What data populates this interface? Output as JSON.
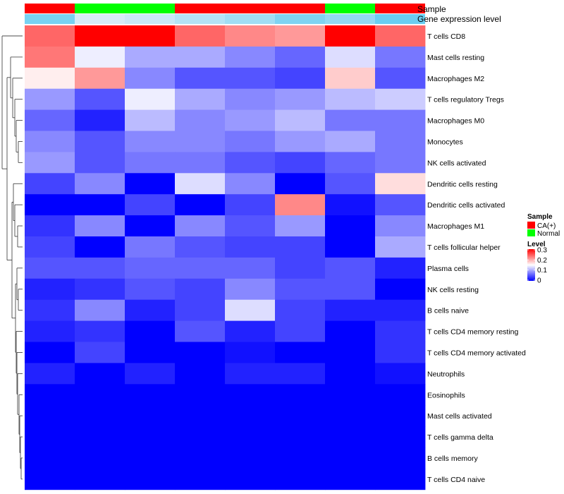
{
  "chart_data": {
    "type": "heatmap",
    "annotation_titles": {
      "sample": "Sample",
      "expression": "Gene expression level"
    },
    "columns": [
      {
        "sample": "CA(+)",
        "expression_level": 0.75
      },
      {
        "sample": "Normal",
        "expression_level": 0.05
      },
      {
        "sample": "Normal",
        "expression_level": 0.15
      },
      {
        "sample": "CA(+)",
        "expression_level": 0.3
      },
      {
        "sample": "CA(+)",
        "expression_level": 0.45
      },
      {
        "sample": "CA(+)",
        "expression_level": 0.7
      },
      {
        "sample": "Normal",
        "expression_level": 0.55
      },
      {
        "sample": "CA(+)",
        "expression_level": 0.85
      }
    ],
    "rows": [
      "T cells CD8",
      "Mast cells resting",
      "Macrophages M2",
      "T cells regulatory  Tregs",
      "Macrophages M0",
      "Monocytes",
      "NK cells activated",
      "Dendritic cells resting",
      "Dendritic cells activated",
      "Macrophages M1",
      "T cells follicular helper",
      "Plasma cells",
      "NK cells resting",
      "B cells naive",
      "T cells CD4 memory resting",
      "T cells CD4 memory activated",
      "Neutrophils",
      "Eosinophils",
      "Mast cells activated",
      "T cells gamma delta",
      "B cells memory",
      "T cells CD4 naive"
    ],
    "values": [
      [
        0.24,
        0.3,
        0.3,
        0.24,
        0.22,
        0.21,
        0.3,
        0.24
      ],
      [
        0.23,
        0.14,
        0.1,
        0.1,
        0.08,
        0.06,
        0.13,
        0.07
      ],
      [
        0.16,
        0.21,
        0.08,
        0.05,
        0.05,
        0.04,
        0.18,
        0.05
      ],
      [
        0.09,
        0.05,
        0.14,
        0.1,
        0.08,
        0.09,
        0.11,
        0.12
      ],
      [
        0.06,
        0.02,
        0.11,
        0.08,
        0.09,
        0.11,
        0.07,
        0.07
      ],
      [
        0.08,
        0.05,
        0.08,
        0.08,
        0.07,
        0.09,
        0.1,
        0.07
      ],
      [
        0.09,
        0.05,
        0.07,
        0.07,
        0.05,
        0.04,
        0.06,
        0.07
      ],
      [
        0.04,
        0.08,
        0.0,
        0.13,
        0.08,
        0.0,
        0.05,
        0.17
      ],
      [
        0.0,
        0.0,
        0.04,
        0.0,
        0.04,
        0.22,
        0.01,
        0.05
      ],
      [
        0.03,
        0.08,
        0.0,
        0.08,
        0.05,
        0.09,
        0.0,
        0.08
      ],
      [
        0.04,
        0.0,
        0.07,
        0.05,
        0.04,
        0.04,
        0.0,
        0.1
      ],
      [
        0.05,
        0.05,
        0.06,
        0.06,
        0.06,
        0.04,
        0.05,
        0.02
      ],
      [
        0.02,
        0.03,
        0.05,
        0.04,
        0.08,
        0.05,
        0.05,
        0.0
      ],
      [
        0.03,
        0.08,
        0.02,
        0.04,
        0.13,
        0.04,
        0.02,
        0.02
      ],
      [
        0.02,
        0.03,
        0.0,
        0.05,
        0.02,
        0.04,
        0.0,
        0.03
      ],
      [
        0.0,
        0.04,
        0.0,
        0.0,
        0.01,
        0.0,
        0.0,
        0.03
      ],
      [
        0.02,
        0.0,
        0.02,
        0.0,
        0.02,
        0.02,
        0.0,
        0.01
      ],
      [
        0.0,
        0.0,
        0.0,
        0.0,
        0.0,
        0.0,
        0.0,
        0.0
      ],
      [
        0.0,
        0.0,
        0.0,
        0.0,
        0.0,
        0.0,
        0.0,
        0.0
      ],
      [
        0.0,
        0.0,
        0.0,
        0.0,
        0.0,
        0.0,
        0.0,
        0.0
      ],
      [
        0.0,
        0.0,
        0.0,
        0.0,
        0.0,
        0.0,
        0.0,
        0.0
      ],
      [
        0.0,
        0.0,
        0.0,
        0.0,
        0.0,
        0.0,
        0.0,
        0.0
      ]
    ],
    "color_scale": {
      "min": 0,
      "max": 0.3,
      "colors": [
        "#0000ff",
        "#ffffff",
        "#ff0000"
      ]
    },
    "expression_scale_colors": [
      "#deeef8",
      "#56c8f0"
    ],
    "legend": {
      "sample_title": "Sample",
      "sample_entries": [
        {
          "label": "CA(+)",
          "color": "#ff0000"
        },
        {
          "label": "Normal",
          "color": "#00ff00"
        }
      ],
      "level_title": "Level",
      "level_ticks": [
        "0.3",
        "0.2",
        "0.1",
        "0"
      ]
    },
    "dendrogram": "rows-clustered",
    "placement": "legend right"
  }
}
